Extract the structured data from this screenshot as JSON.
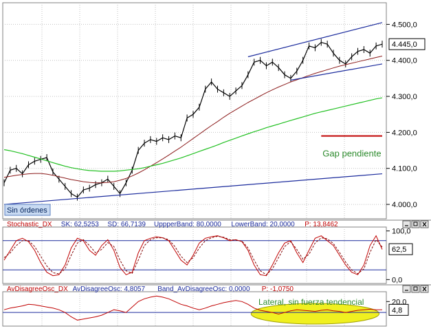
{
  "colors": {
    "background": "#ffffff",
    "grid": "#c0c0c0",
    "price": "#000000",
    "ma_short": "#8b1a1a",
    "ma_long": "#22c022",
    "trend_line": "#1a2a9c",
    "gap_line": "#c00000",
    "gap_text": "#2e8b2e",
    "stoch_k": "#c00000",
    "stoch_d": "#800000",
    "osc_line": "#c00000",
    "band_line": "#1a2a9c",
    "highlight": "#f0f020",
    "header_text": "#c00000",
    "header_value": "#1a2a9c"
  },
  "panel_buttons": [
    "minimize-icon",
    "restore-icon",
    "close-icon"
  ],
  "badge": {
    "label": "Sin órdenes"
  },
  "chart_data": [
    {
      "type": "line",
      "title": "",
      "xlabel": "",
      "ylabel": "",
      "ylim": [
        3960,
        4560
      ],
      "y_ticks": [
        {
          "value": 4000,
          "label": "4.000,0"
        },
        {
          "value": 4100,
          "label": "4.100,0"
        },
        {
          "value": 4200,
          "label": "4.200,0"
        },
        {
          "value": 4300,
          "label": "4.300,0"
        },
        {
          "value": 4400,
          "label": "4.400,0"
        },
        {
          "value": 4500,
          "label": "4.500,0"
        }
      ],
      "last_price_label": "4.445,0",
      "last_price_value": 4445,
      "series": [
        {
          "role": "price",
          "values": [
            4060,
            4095,
            4100,
            4085,
            4110,
            4120,
            4125,
            4130,
            4090,
            4070,
            4050,
            4030,
            4020,
            4040,
            4045,
            4055,
            4060,
            4070,
            4050,
            4030,
            4060,
            4095,
            4150,
            4170,
            4180,
            4175,
            4185,
            4180,
            4190,
            4185,
            4240,
            4250,
            4270,
            4320,
            4340,
            4320,
            4310,
            4300,
            4315,
            4330,
            4360,
            4395,
            4400,
            4385,
            4395,
            4380,
            4360,
            4350,
            4370,
            4400,
            4440,
            4435,
            4450,
            4445,
            4420,
            4400,
            4390,
            4410,
            4425,
            4430,
            4420,
            4440,
            4445
          ]
        },
        {
          "role": "moving-average-short",
          "values": [
            4075,
            4078,
            4081,
            4083,
            4085,
            4086,
            4086,
            4084,
            4081,
            4077,
            4073,
            4069,
            4066,
            4063,
            4061,
            4060,
            4060,
            4061,
            4063,
            4067,
            4072,
            4079,
            4087,
            4096,
            4106,
            4116,
            4126,
            4137,
            4148,
            4159,
            4171,
            4183,
            4195,
            4207,
            4219,
            4230,
            4242,
            4253,
            4263,
            4273,
            4283,
            4292,
            4301,
            4310,
            4318,
            4326,
            4333,
            4340,
            4346,
            4352,
            4358,
            4364,
            4369,
            4374,
            4379,
            4384,
            4388,
            4392,
            4396,
            4400,
            4404,
            4408,
            4412
          ]
        },
        {
          "role": "moving-average-long",
          "values": [
            4152,
            4149,
            4145,
            4141,
            4136,
            4131,
            4126,
            4121,
            4116,
            4111,
            4106,
            4102,
            4099,
            4096,
            4094,
            4093,
            4092,
            4092,
            4092,
            4093,
            4095,
            4097,
            4099,
            4102,
            4106,
            4110,
            4114,
            4119,
            4124,
            4129,
            4135,
            4141,
            4147,
            4153,
            4159,
            4165,
            4172,
            4178,
            4184,
            4190,
            4196,
            4202,
            4207,
            4213,
            4218,
            4223,
            4228,
            4233,
            4238,
            4243,
            4248,
            4253,
            4257,
            4261,
            4265,
            4269,
            4273,
            4277,
            4281,
            4285,
            4289,
            4293,
            4296
          ]
        }
      ],
      "trend_lines": [
        {
          "from": [
            0,
            4000
          ],
          "to": [
            62,
            4085
          ]
        },
        {
          "from": [
            40,
            4410
          ],
          "to": [
            62,
            4505
          ]
        },
        {
          "from": [
            47,
            4345
          ],
          "to": [
            62,
            4390
          ]
        }
      ],
      "gap_line": {
        "from_index": 52,
        "to_index": 62,
        "value": 4190
      },
      "annotation": "Gap pendiente"
    },
    {
      "type": "line",
      "header": [
        {
          "text": "Stochastic_DX",
          "kind": "name"
        },
        {
          "text": "SK: 62,5253",
          "kind": "value"
        },
        {
          "text": "SD: 66,7139",
          "kind": "value"
        },
        {
          "text": "UppperBand: 80,0000",
          "kind": "value"
        },
        {
          "text": "LowerBand: 20,0000",
          "kind": "value"
        },
        {
          "text": "P: 13,8462",
          "kind": "name"
        }
      ],
      "ylim": [
        -8,
        108
      ],
      "y_ticks": [
        {
          "value": 100,
          "label": "100,0"
        },
        {
          "value": 0,
          "label": "0,0"
        }
      ],
      "bands": [
        80,
        20
      ],
      "last_value_label": "62,5",
      "last_value": 62.5,
      "series": [
        {
          "role": "stoch-k",
          "values": [
            40,
            60,
            80,
            85,
            78,
            60,
            35,
            15,
            8,
            10,
            30,
            65,
            85,
            80,
            60,
            50,
            70,
            82,
            60,
            25,
            10,
            15,
            55,
            80,
            85,
            88,
            86,
            80,
            60,
            40,
            30,
            50,
            75,
            85,
            88,
            90,
            86,
            80,
            82,
            78,
            60,
            30,
            10,
            8,
            30,
            55,
            75,
            80,
            55,
            35,
            60,
            85,
            90,
            80,
            70,
            50,
            30,
            15,
            10,
            30,
            70,
            90,
            62
          ]
        },
        {
          "role": "stoch-d",
          "values": [
            45,
            55,
            70,
            80,
            80,
            68,
            48,
            28,
            14,
            12,
            22,
            50,
            75,
            82,
            70,
            55,
            62,
            76,
            68,
            40,
            18,
            13,
            40,
            70,
            82,
            86,
            86,
            82,
            68,
            48,
            35,
            45,
            65,
            80,
            86,
            89,
            87,
            82,
            81,
            79,
            65,
            40,
            18,
            10,
            22,
            45,
            68,
            78,
            62,
            42,
            52,
            75,
            86,
            84,
            74,
            56,
            36,
            20,
            12,
            22,
            56,
            82,
            67
          ]
        }
      ]
    },
    {
      "type": "line",
      "header": [
        {
          "text": "AvDisagreeOsc_DX",
          "kind": "name"
        },
        {
          "text": "AvDisagreeOsc: 4,8057",
          "kind": "value"
        },
        {
          "text": "Band_AvDisagreeOsc: 0,0000",
          "kind": "value"
        },
        {
          "text": "P: -1,0750",
          "kind": "name"
        }
      ],
      "ylim": [
        -25,
        38
      ],
      "y_ticks": [
        {
          "value": 20,
          "label": "20,0"
        }
      ],
      "band_value": 0,
      "last_value_label": "4,8",
      "last_value": 4.8,
      "series": [
        {
          "role": "oscillator",
          "values": [
            5,
            8,
            10,
            12,
            15,
            14,
            12,
            10,
            8,
            5,
            0,
            -8,
            -14,
            -12,
            -10,
            -8,
            -5,
            0,
            5,
            3,
            0,
            10,
            20,
            25,
            28,
            30,
            28,
            25,
            20,
            15,
            12,
            8,
            5,
            8,
            12,
            15,
            18,
            20,
            22,
            20,
            15,
            8,
            4,
            2,
            0,
            -3,
            0,
            3,
            5,
            4,
            3,
            2,
            4,
            5,
            3,
            2,
            0,
            2,
            4,
            5,
            6,
            5,
            4.8
          ]
        }
      ],
      "annotation": "Lateral, sin fuerza tendencial"
    }
  ]
}
